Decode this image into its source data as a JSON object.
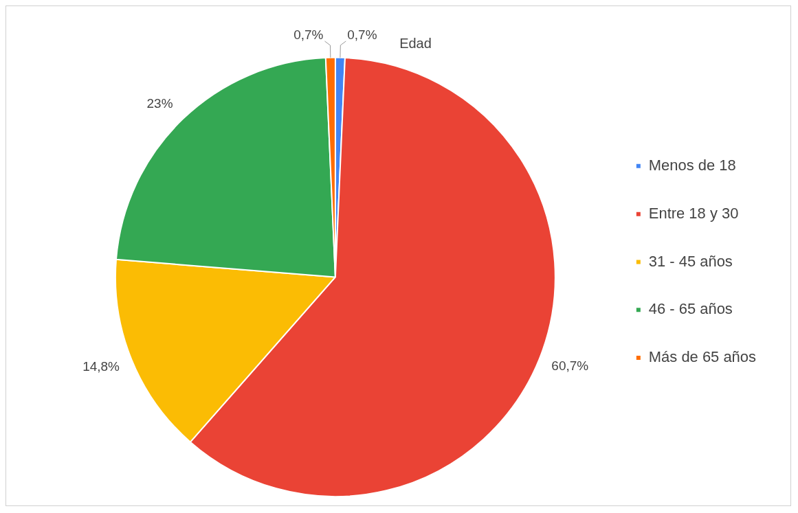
{
  "chart_data": {
    "type": "pie",
    "title": "Edad",
    "categories": [
      "Menos de 18",
      "Entre 18 y 30",
      "31 - 45 años",
      "46 - 65 años",
      "Más de 65 años"
    ],
    "values": [
      0.7,
      60.7,
      14.8,
      23,
      0.7
    ],
    "colors": [
      "#4285f4",
      "#ea4335",
      "#fbbc04",
      "#34a853",
      "#ff6d01"
    ],
    "value_labels": [
      "0,7%",
      "60,7%",
      "14,8%",
      "23%",
      "0,7%"
    ],
    "legend": "right"
  }
}
